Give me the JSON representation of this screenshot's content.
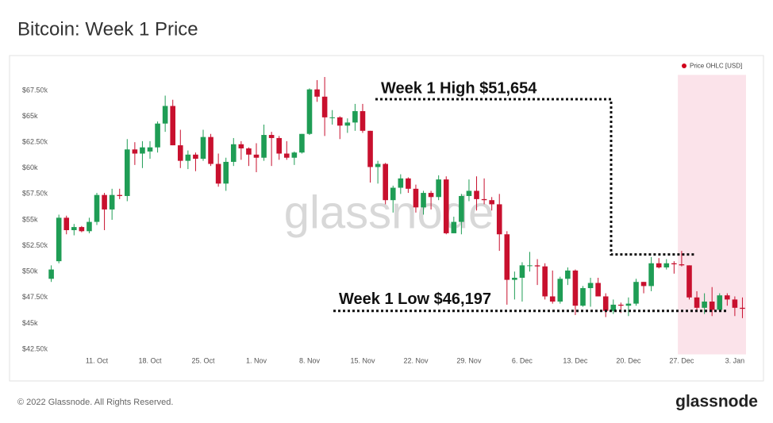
{
  "title": "Bitcoin: Week 1 Price",
  "footer": "© 2022 Glassnode. All Rights Reserved.",
  "logo": "glassnode",
  "chart_data": {
    "type": "candlestick",
    "watermark": "glassnode",
    "categories": [
      null,
      null,
      null,
      null,
      null,
      null,
      "11. Oct",
      null,
      null,
      null,
      null,
      null,
      null,
      "18. Oct",
      null,
      null,
      null,
      null,
      null,
      null,
      "25. Oct",
      null,
      null,
      null,
      null,
      null,
      null,
      "1. Nov",
      null,
      null,
      null,
      null,
      null,
      null,
      "8. Nov",
      null,
      null,
      null,
      null,
      null,
      null,
      "15. Nov",
      null,
      null,
      null,
      null,
      null,
      null,
      "22. Nov",
      null,
      null,
      null,
      null,
      null,
      null,
      "29. Nov",
      null,
      null,
      null,
      null,
      null,
      null,
      "6. Dec",
      null,
      null,
      null,
      null,
      null,
      null,
      "13. Dec",
      null,
      null,
      null,
      null,
      null,
      null,
      "20. Dec",
      null,
      null,
      null,
      null,
      null,
      null,
      "27. Dec",
      null,
      null,
      null,
      null,
      null,
      null,
      "3. Jan",
      null
    ],
    "series": [
      {
        "name": "Price OHLC [USD]",
        "color": "#d0021b",
        "up_color": "#1f9d55",
        "down_color": "#c8102e",
        "open": [
          49300,
          51000,
          55200,
          54000,
          54300,
          53900,
          54800,
          57400,
          56000,
          57400,
          57300,
          61800,
          61400,
          61600,
          62000,
          64300,
          66000,
          62200,
          60700,
          61300,
          60900,
          63000,
          60400,
          58500,
          60600,
          62300,
          61900,
          61300,
          61000,
          63200,
          62900,
          61400,
          61000,
          61500,
          63300,
          67600,
          66900,
          64900,
          64900,
          64100,
          64400,
          65500,
          63600,
          60100,
          60400,
          56900,
          58100,
          59000,
          58000,
          56200,
          57600,
          57200,
          58900,
          53700,
          54800,
          57300,
          57800,
          57000,
          56900,
          56500,
          53600,
          49200,
          49400,
          50600,
          50600,
          50500,
          47600,
          47100,
          49300,
          50100,
          46700,
          48400,
          48900,
          47600,
          46200,
          46800,
          46700,
          46900,
          49000,
          48600,
          50800,
          50400,
          50800,
          50700,
          50600,
          47500,
          46500,
          47100,
          46300,
          47700,
          47300,
          46500
        ],
        "high": [
          50600,
          55500,
          55400,
          54600,
          54400,
          55200,
          57600,
          57600,
          58000,
          58000,
          62800,
          62500,
          62600,
          62600,
          64500,
          67000,
          66600,
          63700,
          61700,
          61500,
          63700,
          63300,
          61400,
          61000,
          62900,
          62600,
          62000,
          62400,
          64200,
          63500,
          63100,
          62600,
          61600,
          63300,
          67700,
          68500,
          68800,
          65600,
          65000,
          64800,
          66200,
          66200,
          63600,
          60700,
          60500,
          58300,
          59400,
          59100,
          58400,
          57800,
          57800,
          59300,
          59200,
          55300,
          57500,
          58900,
          59200,
          59000,
          57200,
          57500,
          53900,
          50000,
          50900,
          51900,
          51200,
          50800,
          50100,
          49500,
          50400,
          50200,
          48600,
          49400,
          49400,
          47900,
          47300,
          47000,
          47500,
          49300,
          49000,
          51400,
          51300,
          51200,
          51000,
          52000,
          50600,
          48100,
          47900,
          48500,
          47900,
          47900,
          47600,
          47500
        ],
        "low": [
          49000,
          50800,
          53600,
          53500,
          53800,
          53700,
          54500,
          54000,
          55000,
          57000,
          56800,
          60300,
          60000,
          60900,
          61500,
          63500,
          62200,
          60000,
          59900,
          59700,
          60700,
          60200,
          58200,
          57800,
          60200,
          60800,
          60200,
          59600,
          60700,
          60200,
          60800,
          60800,
          60300,
          61400,
          63200,
          66400,
          63100,
          64200,
          62800,
          63400,
          63600,
          63400,
          58600,
          58500,
          56500,
          55700,
          57500,
          57600,
          55700,
          55500,
          56000,
          56900,
          53600,
          53700,
          53600,
          56800,
          55900,
          56500,
          55900,
          52000,
          46800,
          47300,
          47100,
          50000,
          48700,
          47300,
          46900,
          46900,
          48700,
          45800,
          46600,
          46600,
          47600,
          45600,
          45900,
          46000,
          45700,
          46700,
          47900,
          48100,
          50300,
          50200,
          49800,
          50500,
          47300,
          46100,
          45900,
          45700,
          46200,
          46700,
          45700,
          45500
        ],
        "close": [
          50200,
          55200,
          54000,
          54300,
          53900,
          54800,
          57400,
          56000,
          57400,
          57300,
          61800,
          61400,
          62000,
          62000,
          64300,
          66000,
          62200,
          60700,
          61300,
          60900,
          63000,
          60400,
          58500,
          60600,
          62300,
          61900,
          61300,
          61000,
          63200,
          62900,
          61400,
          61000,
          61500,
          63300,
          67600,
          66900,
          64900,
          64900,
          64100,
          64400,
          65500,
          63600,
          60100,
          60400,
          56900,
          58100,
          59000,
          58000,
          56200,
          57600,
          57200,
          58900,
          53700,
          54800,
          57300,
          57800,
          57000,
          56900,
          56500,
          53600,
          49200,
          49400,
          50600,
          50600,
          50500,
          47600,
          47100,
          49300,
          50100,
          46700,
          48400,
          48900,
          47600,
          46200,
          46800,
          46700,
          46900,
          49000,
          48600,
          50800,
          50400,
          50800,
          50700,
          50600,
          47500,
          46500,
          47100,
          46300,
          47700,
          47300,
          46500,
          46400
        ]
      }
    ],
    "ylim": [
      42000,
      69000
    ],
    "yticks": [
      {
        "value": 42500,
        "label": "$42.50k"
      },
      {
        "value": 45000,
        "label": "$45k"
      },
      {
        "value": 47500,
        "label": "$47.50k"
      },
      {
        "value": 50000,
        "label": "$50k"
      },
      {
        "value": 52500,
        "label": "$52.50k"
      },
      {
        "value": 55000,
        "label": "$55k"
      },
      {
        "value": 57500,
        "label": "$57.50k"
      },
      {
        "value": 60000,
        "label": "$60k"
      },
      {
        "value": 62500,
        "label": "$62.50k"
      },
      {
        "value": 65000,
        "label": "$65k"
      },
      {
        "value": 67500,
        "label": "$67.50k"
      }
    ],
    "annotations": [
      {
        "label": "Week 1 High $51,654",
        "value": 51654
      },
      {
        "label": "Week 1 Low $46,197",
        "value": 46197
      }
    ],
    "highlight_color": "#fbe3ea",
    "legend": "top-right"
  }
}
